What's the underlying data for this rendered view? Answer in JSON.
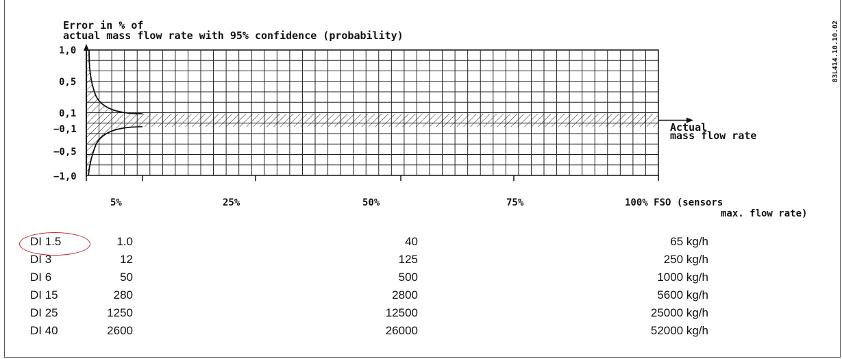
{
  "diagram": {
    "y_axis_title_line1": "Error in % of",
    "y_axis_title_line2": "actual mass flow rate with 95% confidence (probability)",
    "y_ticks": [
      "1,0",
      "0,5",
      "0,1",
      "−0,1",
      "−0,5",
      "−1,0"
    ],
    "x_axis_label_line1": "Actual",
    "x_axis_label_line2": "mass flow rate",
    "x_ticks": [
      "5%",
      "25%",
      "50%",
      "75%"
    ],
    "x_tick_last": "100% FSO (sensors",
    "x_tick_last_line2": "max. flow rate)",
    "document_code": "83L414.10.10.02",
    "highlight_color": "#c0262d"
  },
  "sensor_table": {
    "rows": [
      {
        "model": "DI 1.5",
        "at_5": "1.0",
        "at_50": "40",
        "at_100": "65 kg/h"
      },
      {
        "model": "DI 3",
        "at_5": "12",
        "at_50": "125",
        "at_100": "250 kg/h"
      },
      {
        "model": "DI 6",
        "at_5": "50",
        "at_50": "500",
        "at_100": "1000 kg/h"
      },
      {
        "model": "DI 15",
        "at_5": "280",
        "at_50": "2800",
        "at_100": "5600 kg/h"
      },
      {
        "model": "DI 25",
        "at_5": "1250",
        "at_50": "12500",
        "at_100": "25000 kg/h"
      },
      {
        "model": "DI 40",
        "at_5": "2600",
        "at_50": "26000",
        "at_100": "52000 kg/h"
      }
    ]
  }
}
